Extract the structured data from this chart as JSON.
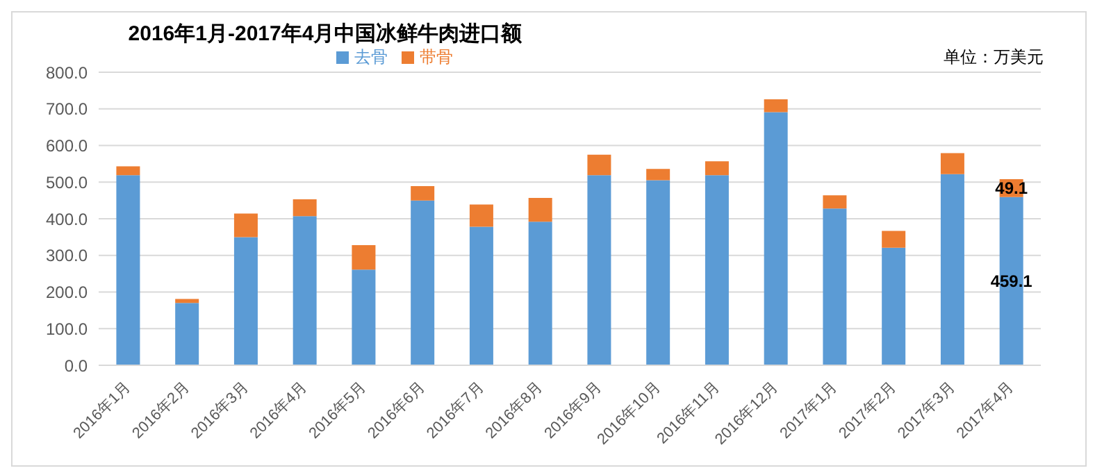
{
  "chart_data": {
    "type": "bar",
    "stacked": true,
    "title": "2016年1月-2017年4月中国冰鲜牛肉进口额",
    "annotations": [
      "单位：万美元"
    ],
    "categories": [
      "2016年1月",
      "2016年2月",
      "2016年3月",
      "2016年4月",
      "2016年5月",
      "2016年6月",
      "2016年7月",
      "2016年8月",
      "2016年9月",
      "2016年10月",
      "2016年11月",
      "2016年12月",
      "2017年1月",
      "2017年2月",
      "2017年3月",
      "2017年4月"
    ],
    "series": [
      {
        "name": "去骨",
        "color": "#5b9bd5",
        "values": [
          519,
          170,
          350,
          407,
          261,
          450,
          378,
          392,
          519,
          505,
          519,
          691,
          428,
          321,
          522,
          459.1
        ],
        "value_labels": [
          null,
          null,
          null,
          null,
          null,
          null,
          null,
          null,
          null,
          null,
          null,
          null,
          null,
          null,
          null,
          "459.1"
        ]
      },
      {
        "name": "带骨",
        "color": "#ed7d31",
        "values": [
          24,
          11,
          64,
          46,
          67,
          39,
          61,
          65,
          56,
          31,
          38,
          35,
          36,
          46,
          57,
          49.1
        ],
        "value_labels": [
          null,
          null,
          null,
          null,
          null,
          null,
          null,
          null,
          null,
          null,
          null,
          null,
          null,
          null,
          null,
          "49.1"
        ]
      }
    ],
    "ylim": [
      0,
      800
    ],
    "yticks": [
      {
        "value": 0,
        "label": "0.0"
      },
      {
        "value": 100,
        "label": "100.0"
      },
      {
        "value": 200,
        "label": "200.0"
      },
      {
        "value": 300,
        "label": "300.0"
      },
      {
        "value": 400,
        "label": "400.0"
      },
      {
        "value": 500,
        "label": "500.0"
      },
      {
        "value": 600,
        "label": "600.0"
      },
      {
        "value": 700,
        "label": "700.0"
      },
      {
        "value": 800,
        "label": "800.0"
      }
    ],
    "grid": "y",
    "legend": "top"
  }
}
